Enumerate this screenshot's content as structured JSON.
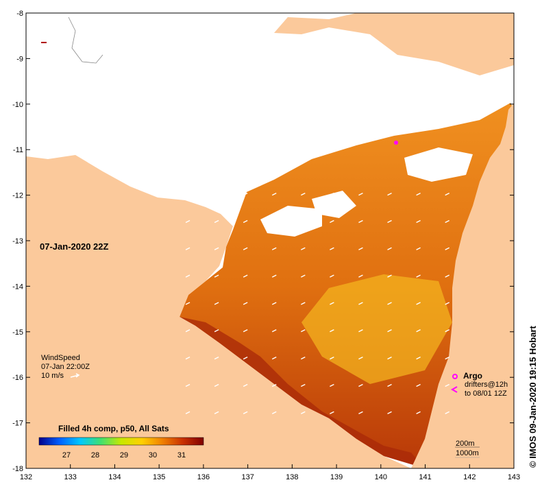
{
  "map": {
    "lon_ticks": [
      132,
      133,
      134,
      135,
      136,
      137,
      138,
      139,
      140,
      141,
      142,
      143
    ],
    "lat_ticks": [
      -8,
      -9,
      -10,
      -11,
      -12,
      -13,
      -14,
      -15,
      -16,
      -17,
      -18
    ],
    "lon_range": [
      132,
      143
    ],
    "lat_range": [
      -18,
      -8
    ],
    "colors": {
      "land": "#fbc99b",
      "cloud": "#ffffff",
      "frame": "#000000"
    }
  },
  "date_label": "07-Jan-2020 22Z",
  "wind": {
    "title": "WindSpeed",
    "time": "07-Jan 22:00Z",
    "scale": "10 m/s"
  },
  "colorbar": {
    "title": "Filled 4h comp, p50, All Sats",
    "ticks": [
      "27",
      "28",
      "29",
      "30",
      "31"
    ],
    "gradient": [
      "#00008b",
      "#0060ff",
      "#00c8ff",
      "#40e070",
      "#c8e800",
      "#ffd000",
      "#f08000",
      "#c83000",
      "#800000"
    ]
  },
  "legend": {
    "argo": "Argo",
    "drifters_line1": "drifters@12h",
    "drifters_line2": "to 08/01 12Z",
    "argo_color": "#ff00ff"
  },
  "depth": {
    "contour1": "200m",
    "contour2": "1000m"
  },
  "credit": "© IMOS 09-Jan-2020 19:15 Hobart"
}
